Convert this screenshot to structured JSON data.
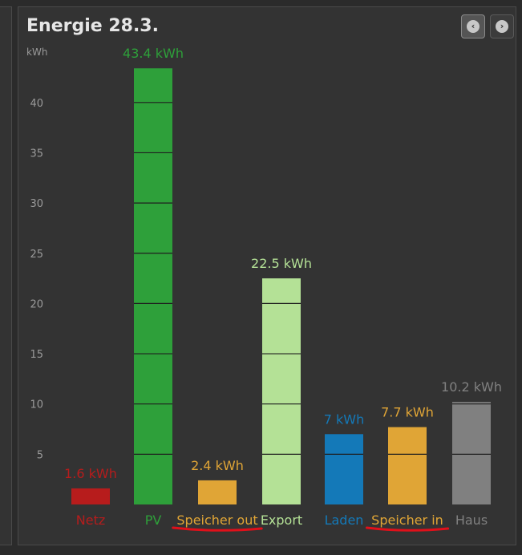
{
  "header": {
    "title": "Energie 28.3.",
    "prev_icon": "chevron-left-icon",
    "next_icon": "chevron-right-icon"
  },
  "chart_data": {
    "type": "bar",
    "title": "Energie 28.3.",
    "ylabel": "kWh",
    "ylim": [
      0,
      45
    ],
    "yticks": [
      5,
      10,
      15,
      20,
      25,
      30,
      35,
      40
    ],
    "segment_step": 5,
    "categories": [
      "Netz",
      "PV",
      "Speicher out",
      "Export",
      "Laden",
      "Speicher in",
      "Haus"
    ],
    "values": [
      1.6,
      43.4,
      2.4,
      22.5,
      7,
      7.7,
      10.2
    ],
    "value_labels": [
      "1.6 kWh",
      "43.4 kWh",
      "2.4 kWh",
      "22.5 kWh",
      "7 kWh",
      "7.7 kWh",
      "10.2 kWh"
    ],
    "colors": [
      "#b71c1c",
      "#2ea03a",
      "#e0a536",
      "#b4e196",
      "#1479b8",
      "#e0a536",
      "#808080"
    ],
    "underlined": [
      "Speicher out",
      "Speicher in"
    ],
    "underline_color": "#e0101a",
    "grid": false
  }
}
